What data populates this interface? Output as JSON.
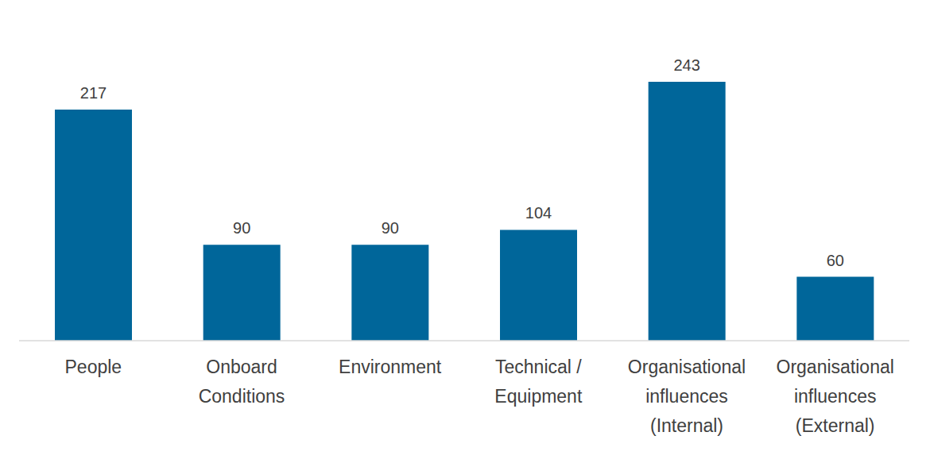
{
  "chart_data": {
    "type": "bar",
    "categories": [
      "People",
      "Onboard Conditions",
      "Environment",
      "Technical / Equipment",
      "Organisational influences (Internal)",
      "Organisational influences (External)"
    ],
    "values": [
      217,
      90,
      90,
      104,
      243,
      60
    ],
    "color": "#00669a",
    "data_labels": true,
    "tick_labels": "x",
    "grid": false
  }
}
